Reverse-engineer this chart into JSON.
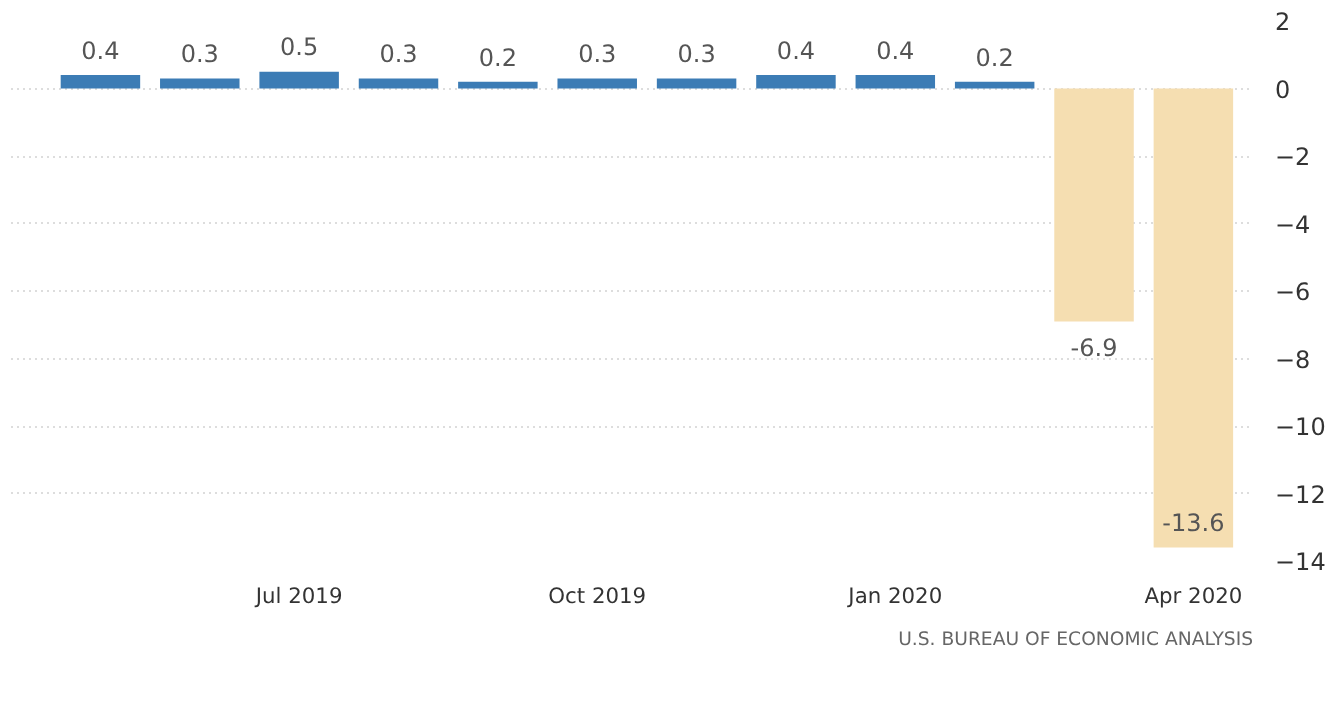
{
  "chart_data": {
    "type": "bar",
    "categories": [
      null,
      null,
      "Jul 2019",
      null,
      null,
      "Oct 2019",
      null,
      null,
      "Jan 2020",
      null,
      null,
      "Apr 2020"
    ],
    "values": [
      0.4,
      0.3,
      0.5,
      0.3,
      0.2,
      0.3,
      0.3,
      0.4,
      0.4,
      0.2,
      -6.9,
      -13.6
    ],
    "colors": [
      "#3c7cb5",
      "#3c7cb5",
      "#3c7cb5",
      "#3c7cb5",
      "#3c7cb5",
      "#3c7cb5",
      "#3c7cb5",
      "#3c7cb5",
      "#3c7cb5",
      "#3c7cb5",
      "#f5deb1",
      "#f5deb1"
    ],
    "ylim": [
      -14,
      2
    ],
    "yticks": [
      2,
      0,
      -2,
      -4,
      -6,
      -8,
      -10,
      -12,
      -14
    ],
    "grid": "y",
    "data_labels": true,
    "annotations": [
      "U.S. BUREAU OF ECONOMIC ANALYSIS"
    ]
  }
}
